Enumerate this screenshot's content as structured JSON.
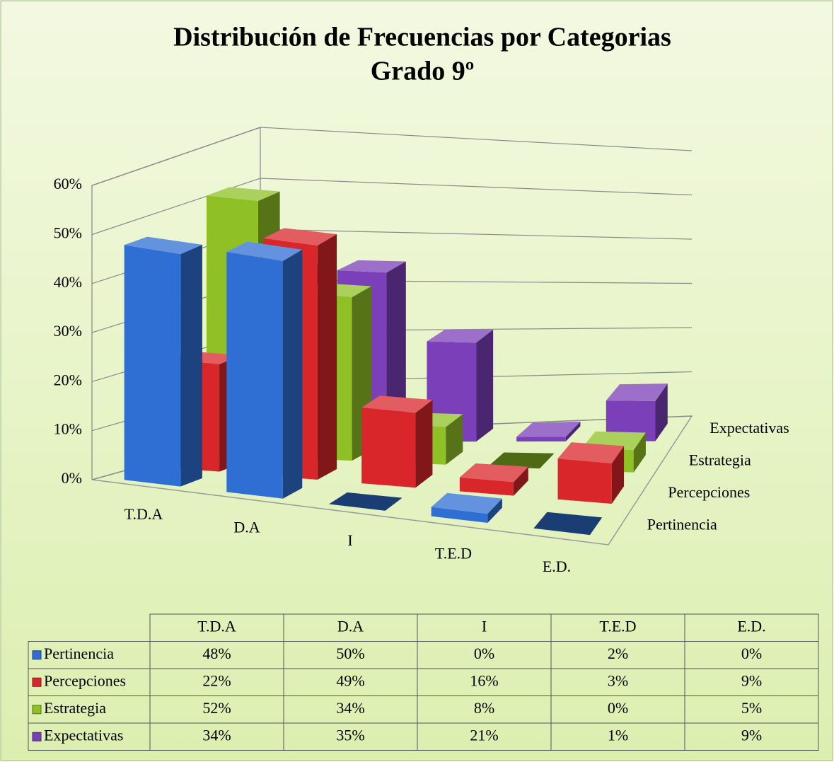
{
  "chart_data": {
    "type": "bar3d",
    "title": "Distribución de Frecuencias por Categorias",
    "subtitle": "Grado 9º",
    "categories": [
      "T.D.A",
      "D.A",
      "I",
      "T.E.D",
      "E.D."
    ],
    "series": [
      {
        "name": "Pertinencia",
        "color": "#2f6fd3",
        "values": [
          48,
          50,
          0,
          2,
          0
        ],
        "value_labels": [
          "48%",
          "50%",
          "0%",
          "2%",
          "0%"
        ]
      },
      {
        "name": "Percepciones",
        "color": "#d8262b",
        "values": [
          22,
          49,
          16,
          3,
          9
        ],
        "value_labels": [
          "22%",
          "49%",
          "16%",
          "3%",
          "9%"
        ]
      },
      {
        "name": "Estrategia",
        "color": "#8fc127",
        "values": [
          52,
          34,
          8,
          0,
          5
        ],
        "value_labels": [
          "52%",
          "34%",
          "8%",
          "0%",
          "5%"
        ]
      },
      {
        "name": "Expectativas",
        "color": "#7b3fba",
        "values": [
          34,
          35,
          21,
          1,
          9
        ],
        "value_labels": [
          "34%",
          "35%",
          "21%",
          "1%",
          "9%"
        ]
      }
    ],
    "ylim": [
      0,
      60
    ],
    "yticks": [
      {
        "value": 0,
        "label": "0%"
      },
      {
        "value": 10,
        "label": "10%"
      },
      {
        "value": 20,
        "label": "20%"
      },
      {
        "value": 30,
        "label": "30%"
      },
      {
        "value": 40,
        "label": "40%"
      },
      {
        "value": 50,
        "label": "50%"
      },
      {
        "value": 60,
        "label": "60%"
      }
    ],
    "grid": true
  }
}
